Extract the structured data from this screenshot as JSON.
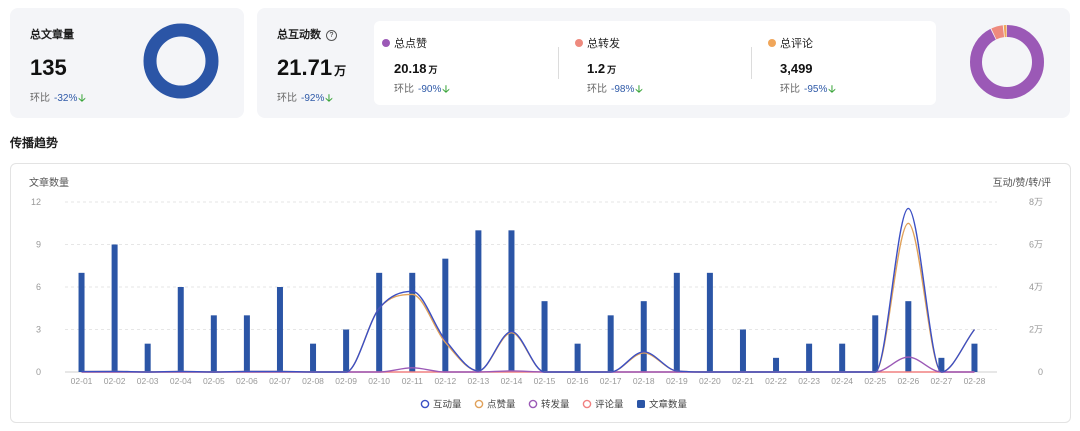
{
  "articles": {
    "label": "总文章量",
    "value": "135",
    "ratio_label": "环比",
    "ratio_value": "-32%",
    "arrow": "🡣"
  },
  "interactions": {
    "label": "总互动数",
    "help": "?",
    "value": "21.71",
    "unit": "万",
    "ratio_label": "环比",
    "ratio_value": "-92%",
    "arrow": "🡣"
  },
  "metrics": [
    {
      "label": "总点赞",
      "color": "#9b59b6",
      "value": "20.18",
      "unit": "万",
      "ratio_label": "环比",
      "ratio_value": "-90%",
      "arrow": "🡣"
    },
    {
      "label": "总转发",
      "color": "#ee8a7e",
      "value": "1.2",
      "unit": "万",
      "ratio_label": "环比",
      "ratio_value": "-98%",
      "arrow": "🡣"
    },
    {
      "label": "总评论",
      "color": "#f0a65a",
      "value": "3,499",
      "unit": "",
      "ratio_label": "环比",
      "ratio_value": "-95%",
      "arrow": "🡣"
    }
  ],
  "donut_articles": {
    "color": "#2b55a6"
  },
  "donut_interactions": {
    "slices": [
      {
        "name": "总点赞",
        "value": 201800,
        "color": "#9b59b6"
      },
      {
        "name": "总转发",
        "value": 12000,
        "color": "#ee8a7e"
      },
      {
        "name": "总评论",
        "value": 3499,
        "color": "#f0a65a"
      }
    ]
  },
  "section_title": "传播趋势",
  "chart_data": {
    "type": "bar",
    "ylabel_left": "文章数量",
    "ylabel_right": "互动/赞/转/评",
    "yleft_ticks": [
      "0",
      "3",
      "6",
      "9",
      "12"
    ],
    "yleft_lim": [
      0,
      12
    ],
    "yright_ticks": [
      "0",
      "2万",
      "4万",
      "6万",
      "8万"
    ],
    "yright_lim": [
      0,
      80000
    ],
    "grid": true,
    "legend_position": "bottom-center",
    "categories": [
      "02-01",
      "02-02",
      "02-03",
      "02-04",
      "02-05",
      "02-06",
      "02-07",
      "02-08",
      "02-09",
      "02-10",
      "02-11",
      "02-12",
      "02-13",
      "02-14",
      "02-15",
      "02-16",
      "02-17",
      "02-18",
      "02-19",
      "02-20",
      "02-21",
      "02-22",
      "02-23",
      "02-24",
      "02-25",
      "02-26",
      "02-27",
      "02-28"
    ],
    "series": [
      {
        "name": "互动量",
        "type": "line",
        "axis": "right",
        "color": "#3b4fc4",
        "values": [
          200,
          300,
          0,
          300,
          0,
          300,
          300,
          0,
          0,
          30000,
          38000,
          15000,
          500,
          19000,
          0,
          0,
          0,
          9500,
          500,
          0,
          0,
          0,
          0,
          0,
          0,
          77000,
          0,
          20000
        ]
      },
      {
        "name": "点赞量",
        "type": "line",
        "axis": "right",
        "color": "#e0a15a",
        "values": [
          200,
          300,
          0,
          300,
          0,
          300,
          300,
          0,
          0,
          30000,
          36500,
          14000,
          500,
          18500,
          0,
          0,
          0,
          9000,
          500,
          0,
          0,
          0,
          0,
          0,
          0,
          70000,
          0,
          20000
        ]
      },
      {
        "name": "转发量",
        "type": "line",
        "axis": "right",
        "color": "#9b59b6",
        "values": [
          0,
          0,
          0,
          0,
          0,
          0,
          0,
          0,
          0,
          0,
          2000,
          0,
          0,
          500,
          0,
          0,
          0,
          0,
          0,
          0,
          0,
          0,
          0,
          0,
          0,
          7000,
          0,
          0
        ]
      },
      {
        "name": "评论量",
        "type": "line",
        "axis": "right",
        "color": "#f08080",
        "values": [
          0,
          0,
          0,
          0,
          0,
          0,
          0,
          0,
          0,
          0,
          0,
          0,
          0,
          0,
          0,
          0,
          0,
          0,
          0,
          0,
          0,
          0,
          0,
          0,
          0,
          0,
          0,
          0
        ]
      },
      {
        "name": "文章数量",
        "type": "bar",
        "axis": "left",
        "color": "#2b55a6",
        "values": [
          7,
          9,
          2,
          6,
          4,
          4,
          6,
          2,
          3,
          7,
          7,
          8,
          10,
          10,
          5,
          2,
          4,
          5,
          7,
          7,
          3,
          1,
          2,
          2,
          4,
          5,
          1,
          2
        ]
      }
    ]
  }
}
